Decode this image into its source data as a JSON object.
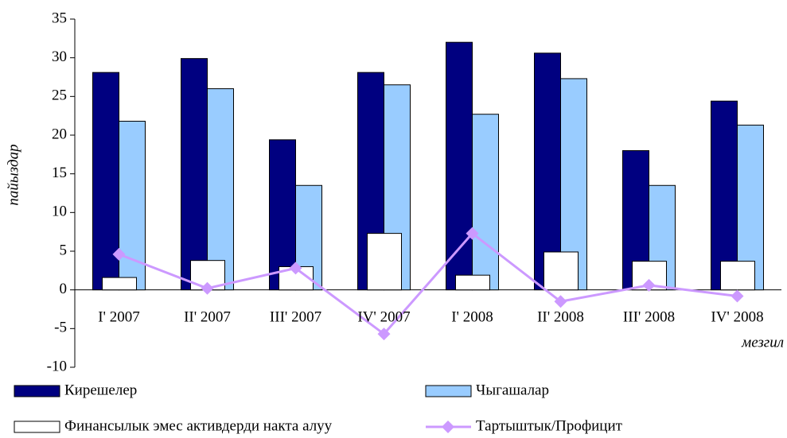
{
  "chart_data": {
    "type": "bar",
    "y_label": "пайыздар",
    "x_label": "мезгил",
    "categories": [
      "I' 2007",
      "II' 2007",
      "III' 2007",
      "IV' 2007",
      "I' 2008",
      "II' 2008",
      "III' 2008",
      "IV' 2008"
    ],
    "series": [
      {
        "name": "Кирешелер",
        "color": "#000080",
        "type": "bar",
        "values": [
          28.1,
          29.9,
          19.4,
          28.1,
          32.0,
          30.6,
          18.0,
          24.4
        ]
      },
      {
        "name": "Чыгашалар",
        "color": "#99ccff",
        "type": "bar",
        "values": [
          21.8,
          26.0,
          13.5,
          26.5,
          22.7,
          27.3,
          13.5,
          21.3
        ]
      },
      {
        "name": "Финансылык эмес активдерди накта алуу",
        "color": "#ffffff",
        "type": "bar",
        "values": [
          1.6,
          3.8,
          3.0,
          7.3,
          1.9,
          4.9,
          3.7,
          3.7
        ]
      },
      {
        "name": "Тартыштык/Профицит",
        "color": "#cc99ff",
        "type": "line",
        "values": [
          4.6,
          0.2,
          2.8,
          -5.7,
          7.3,
          -1.5,
          0.6,
          -0.8
        ]
      }
    ],
    "ylim": [
      -10,
      35
    ],
    "yticks": [
      -10,
      -5,
      0,
      5,
      10,
      15,
      20,
      25,
      30,
      35
    ],
    "grid": false,
    "legend": "bottom"
  }
}
